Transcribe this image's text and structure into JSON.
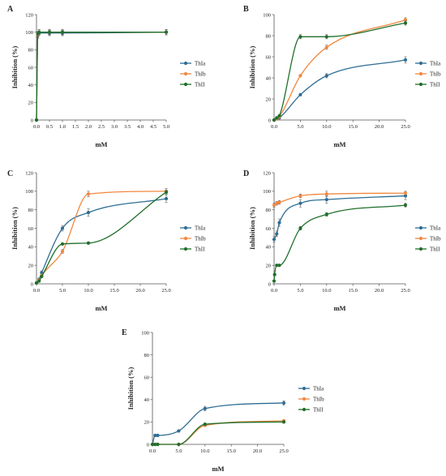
{
  "colors": {
    "ThIa": "#2e6d94",
    "ThIb": "#f28740",
    "ThII": "#1f6f2a"
  },
  "chart_data": [
    {
      "type": "line",
      "panel": "A",
      "xlabel": "mM",
      "ylabel": "Inhibition (%)",
      "xlim": [
        0,
        5
      ],
      "ylim": [
        0,
        120
      ],
      "xticks": [
        0,
        0.5,
        1,
        1.5,
        2,
        2.5,
        3,
        3.5,
        4,
        4.5,
        5
      ],
      "xtick_labels": [
        "0.0",
        "0.5",
        "1.0",
        "1.5",
        "2.0",
        "2.5",
        "3.0",
        "3.5",
        "4.0",
        "4.5",
        "5.0"
      ],
      "yticks": [
        0,
        20,
        40,
        60,
        80,
        100,
        120
      ],
      "legend": "right",
      "series": [
        {
          "name": "ThIa",
          "x": [
            0,
            0.05,
            0.1,
            0.5,
            1,
            5
          ],
          "y": [
            0,
            96,
            99,
            99,
            99,
            100
          ],
          "err": [
            0,
            3,
            2,
            3,
            3,
            3
          ]
        },
        {
          "name": "ThIb",
          "x": [
            0,
            0.05,
            0.1,
            0.5,
            1,
            5
          ],
          "y": [
            0,
            97,
            100,
            100,
            100,
            100
          ],
          "err": [
            0,
            3,
            3,
            3,
            3,
            3
          ]
        },
        {
          "name": "ThII",
          "x": [
            0,
            0.05,
            0.1,
            0.5,
            1,
            5
          ],
          "y": [
            0,
            98,
            100,
            100,
            100,
            100
          ],
          "err": [
            0,
            3,
            3,
            3,
            3,
            3
          ]
        }
      ]
    },
    {
      "type": "line",
      "panel": "B",
      "xlabel": "mM",
      "ylabel": "Inhibition (%)",
      "xlim": [
        0,
        25
      ],
      "ylim": [
        0,
        100
      ],
      "xticks": [
        0,
        5,
        10,
        15,
        20,
        25
      ],
      "xtick_labels": [
        "0.0",
        "5.0",
        "10.0",
        "15.0",
        "20.0",
        "25.0"
      ],
      "yticks": [
        0,
        20,
        40,
        60,
        80,
        100
      ],
      "legend": "right",
      "series": [
        {
          "name": "ThIa",
          "x": [
            0,
            0.5,
            1,
            5,
            10,
            25
          ],
          "y": [
            0,
            1,
            2,
            24,
            42,
            57
          ],
          "err": [
            0,
            1,
            1,
            1,
            2,
            3
          ]
        },
        {
          "name": "ThIb",
          "x": [
            0,
            0.5,
            1,
            5,
            10,
            25
          ],
          "y": [
            0,
            1,
            3,
            42,
            69,
            95
          ],
          "err": [
            0,
            1,
            1,
            1,
            2,
            2
          ]
        },
        {
          "name": "ThII",
          "x": [
            0,
            0.5,
            1,
            5,
            10,
            25
          ],
          "y": [
            0,
            2,
            4,
            79,
            79,
            92
          ],
          "err": [
            0,
            1,
            1,
            2,
            2,
            2
          ]
        }
      ]
    },
    {
      "type": "line",
      "panel": "C",
      "xlabel": "mM",
      "ylabel": "Inhibition (%)",
      "xlim": [
        0,
        25
      ],
      "ylim": [
        0,
        120
      ],
      "xticks": [
        0,
        5,
        10,
        15,
        20,
        25
      ],
      "xtick_labels": [
        "0.0",
        "5.0",
        "10.0",
        "15.0",
        "20.0",
        "25.0"
      ],
      "yticks": [
        0,
        20,
        40,
        60,
        80,
        100,
        120
      ],
      "legend": "right",
      "series": [
        {
          "name": "ThIa",
          "x": [
            0,
            0.5,
            1,
            5,
            10,
            25
          ],
          "y": [
            1,
            5,
            12,
            60,
            77,
            92
          ],
          "err": [
            0,
            1,
            2,
            3,
            4,
            4
          ]
        },
        {
          "name": "ThIb",
          "x": [
            0,
            0.5,
            1,
            5,
            10,
            25
          ],
          "y": [
            1,
            4,
            9,
            35,
            97,
            100
          ],
          "err": [
            0,
            1,
            1,
            2,
            3,
            3
          ]
        },
        {
          "name": "ThII",
          "x": [
            0,
            0.5,
            1,
            5,
            10,
            25
          ],
          "y": [
            1,
            3,
            8,
            43,
            44,
            99
          ],
          "err": [
            0,
            1,
            1,
            1,
            1,
            2
          ]
        }
      ]
    },
    {
      "type": "line",
      "panel": "D",
      "xlabel": "mM",
      "ylabel": "Inhibition (%)",
      "xlim": [
        0,
        25
      ],
      "ylim": [
        0,
        120
      ],
      "xticks": [
        0,
        5,
        10,
        15,
        20,
        25
      ],
      "xtick_labels": [
        "0.0",
        "5.0",
        "10.0",
        "15.0",
        "20.0",
        "25.0"
      ],
      "yticks": [
        0,
        20,
        40,
        60,
        80,
        100,
        120
      ],
      "legend": "right",
      "series": [
        {
          "name": "ThIa",
          "x": [
            0,
            0.5,
            1,
            5,
            10,
            25
          ],
          "y": [
            48,
            54,
            66,
            87,
            91,
            95
          ],
          "err": [
            3,
            3,
            4,
            4,
            4,
            4
          ]
        },
        {
          "name": "ThIb",
          "x": [
            0,
            0.5,
            1,
            5,
            10,
            25
          ],
          "y": [
            85,
            87,
            88,
            95,
            97,
            98
          ],
          "err": [
            2,
            2,
            2,
            2,
            3,
            2
          ]
        },
        {
          "name": "ThII",
          "x": [
            0,
            0.1,
            0.5,
            1,
            5,
            10,
            25
          ],
          "y": [
            3,
            10,
            20,
            20,
            60,
            75,
            85
          ],
          "err": [
            1,
            1,
            1,
            1,
            2,
            2,
            2
          ]
        }
      ]
    },
    {
      "type": "line",
      "panel": "E",
      "xlabel": "mM",
      "ylabel": "Inhibition (%)",
      "xlim": [
        0,
        25
      ],
      "ylim": [
        0,
        100
      ],
      "xticks": [
        0,
        5,
        10,
        15,
        20,
        25
      ],
      "xtick_labels": [
        "0.0",
        "5.0",
        "10.0",
        "15.0",
        "20.0",
        "25.0"
      ],
      "yticks": [
        0,
        20,
        40,
        60,
        80,
        100
      ],
      "legend": "right",
      "series": [
        {
          "name": "ThIa",
          "x": [
            0,
            0.5,
            1,
            5,
            10,
            25
          ],
          "y": [
            0,
            8,
            8,
            12,
            32,
            37
          ],
          "err": [
            0,
            1,
            1,
            1,
            2,
            2
          ]
        },
        {
          "name": "ThIb",
          "x": [
            0,
            0.5,
            1,
            5,
            10,
            25
          ],
          "y": [
            0,
            0,
            0,
            0,
            17,
            21
          ],
          "err": [
            0,
            0,
            0,
            0,
            1,
            1
          ]
        },
        {
          "name": "ThII",
          "x": [
            0,
            0.5,
            1,
            5,
            10,
            25
          ],
          "y": [
            0,
            0,
            0,
            0,
            18,
            20
          ],
          "err": [
            0,
            0,
            0,
            0,
            1,
            1
          ]
        }
      ]
    }
  ]
}
